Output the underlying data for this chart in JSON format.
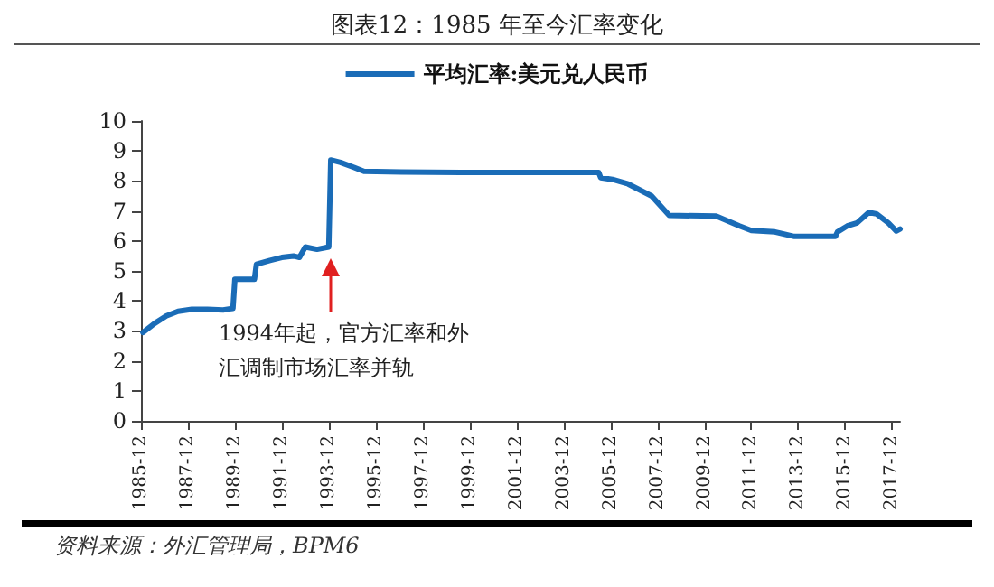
{
  "chart_data": {
    "type": "line",
    "title": "图表12：1985 年至今汇率变化",
    "xlim": [
      "1985-12",
      "2018-04"
    ],
    "xticks": [
      "1985-12",
      "1987-12",
      "1989-12",
      "1991-12",
      "1993-12",
      "1995-12",
      "1997-12",
      "1999-12",
      "2001-12",
      "2003-12",
      "2005-12",
      "2007-12",
      "2009-12",
      "2011-12",
      "2013-12",
      "2015-12",
      "2017-12"
    ],
    "ylim": [
      0,
      10
    ],
    "yticks": [
      0,
      1,
      2,
      3,
      4,
      5,
      6,
      7,
      8,
      9,
      10
    ],
    "grid": false,
    "legend": "top",
    "marker": "none",
    "line_style": "solid",
    "series": [
      {
        "name": "平均汇率:美元兑人民币",
        "color": "#1a6cb7",
        "x": [
          "1986-01",
          "1986-07",
          "1987-01",
          "1987-07",
          "1988-02",
          "1988-10",
          "1989-06",
          "1989-11",
          "1989-12",
          "1990-10",
          "1990-11",
          "1991-06",
          "1991-12",
          "1992-06",
          "1992-09",
          "1992-12",
          "1993-06",
          "1993-12",
          "1994-01",
          "1994-06",
          "1995-01",
          "1995-06",
          "1997-01",
          "2000-01",
          "2005-06",
          "2005-07",
          "2006-01",
          "2006-09",
          "2007-09",
          "2008-06",
          "2010-06",
          "2011-06",
          "2011-12",
          "2012-12",
          "2013-10",
          "2015-07",
          "2015-08",
          "2016-01",
          "2016-06",
          "2016-12",
          "2017-04",
          "2017-10",
          "2018-02",
          "2018-04"
        ],
        "values": [
          2.95,
          3.25,
          3.5,
          3.65,
          3.72,
          3.72,
          3.7,
          3.75,
          4.72,
          4.72,
          5.22,
          5.35,
          5.45,
          5.5,
          5.45,
          5.8,
          5.72,
          5.8,
          8.7,
          8.62,
          8.45,
          8.32,
          8.3,
          8.28,
          8.28,
          8.11,
          8.05,
          7.9,
          7.5,
          6.85,
          6.83,
          6.5,
          6.35,
          6.3,
          6.15,
          6.15,
          6.3,
          6.5,
          6.6,
          6.95,
          6.9,
          6.6,
          6.33,
          6.4
        ]
      }
    ],
    "annotations": [
      "1994年起，官方汇率和外汇调制市场汇率并轨",
      "资料来源：外汇管理局，BPM6"
    ]
  }
}
